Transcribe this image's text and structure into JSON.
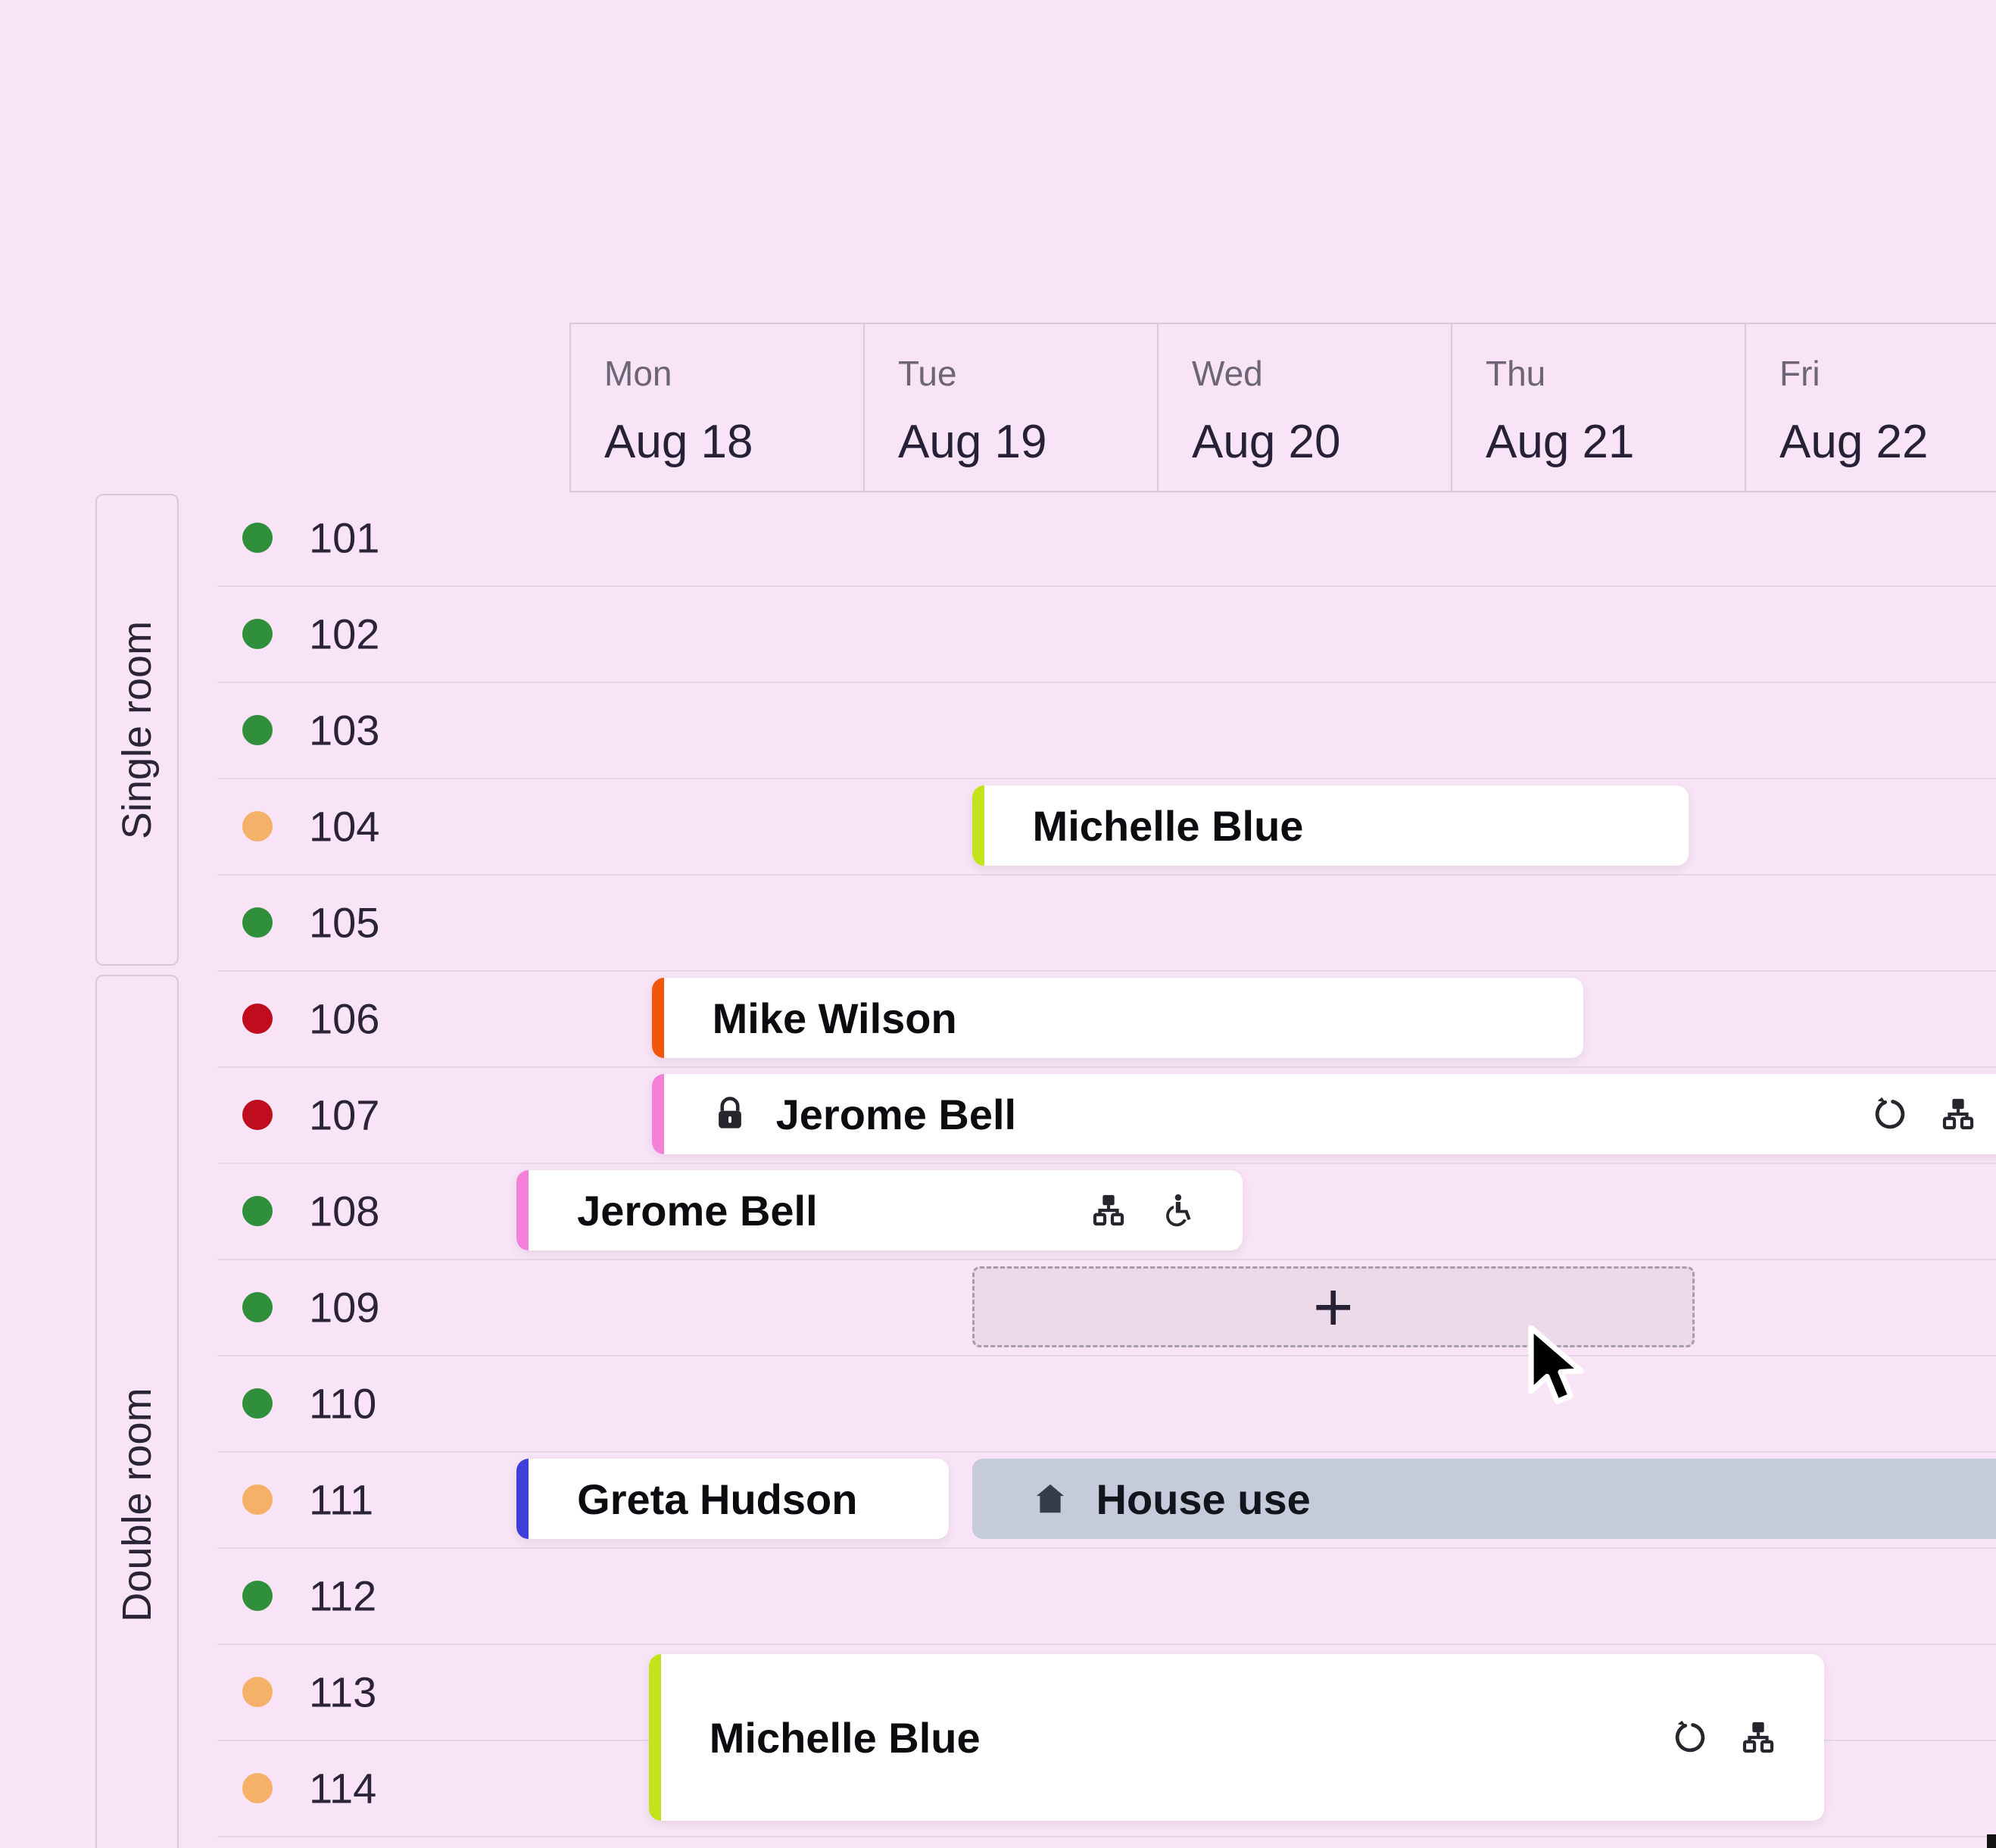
{
  "calendar": {
    "days": [
      {
        "weekday": "Mon",
        "date": "Aug 18"
      },
      {
        "weekday": "Tue",
        "date": "Aug 19"
      },
      {
        "weekday": "Wed",
        "date": "Aug 20"
      },
      {
        "weekday": "Thu",
        "date": "Aug 21"
      },
      {
        "weekday": "Fri",
        "date": "Aug 22"
      }
    ]
  },
  "room_groups": [
    {
      "label": "Single room",
      "rooms": [
        {
          "number": "101",
          "status": "available"
        },
        {
          "number": "102",
          "status": "available"
        },
        {
          "number": "103",
          "status": "available"
        },
        {
          "number": "104",
          "status": "attention"
        },
        {
          "number": "105",
          "status": "available"
        }
      ]
    },
    {
      "label": "Double room",
      "rooms": [
        {
          "number": "106",
          "status": "occupied"
        },
        {
          "number": "107",
          "status": "occupied"
        },
        {
          "number": "108",
          "status": "available"
        },
        {
          "number": "109",
          "status": "available"
        },
        {
          "number": "110",
          "status": "available"
        },
        {
          "number": "111",
          "status": "attention"
        },
        {
          "number": "112",
          "status": "available"
        },
        {
          "number": "113",
          "status": "attention"
        },
        {
          "number": "114",
          "status": "attention"
        }
      ]
    }
  ],
  "status_colors": {
    "available": "#2f8f3b",
    "occupied": "#bf0d1e",
    "attention": "#f6b168"
  },
  "accent_colors": {
    "lime": "#c3e31d",
    "orange": "#f25708",
    "pink": "#f480d7",
    "blue": "#3e3ed8"
  },
  "bookings": [
    {
      "room": "104",
      "guest": "Michelle Blue",
      "kind": "guest",
      "accent": "lime",
      "start_day": 1.37,
      "end_day": 3.81,
      "locked": false,
      "rowspan": 1,
      "icons": []
    },
    {
      "room": "106",
      "guest": "Mike Wilson",
      "kind": "guest",
      "accent": "orange",
      "start_day": 0.28,
      "end_day": 3.45,
      "locked": false,
      "rowspan": 1,
      "icons": []
    },
    {
      "room": "107",
      "guest": "Jerome Bell",
      "kind": "guest",
      "accent": "pink",
      "start_day": 0.28,
      "end_day": 4.95,
      "locked": true,
      "rowspan": 1,
      "icons": [
        "refresh",
        "sitemap"
      ]
    },
    {
      "room": "108",
      "guest": "Jerome Bell",
      "kind": "guest",
      "accent": "pink",
      "start_day": -0.18,
      "end_day": 2.29,
      "locked": false,
      "rowspan": 1,
      "icons": [
        "sitemap",
        "wheelchair"
      ]
    },
    {
      "room": "111",
      "guest": "Greta Hudson",
      "kind": "guest",
      "accent": "blue",
      "start_day": -0.18,
      "end_day": 1.29,
      "locked": false,
      "rowspan": 1,
      "icons": []
    },
    {
      "room": "111",
      "guest": "House use",
      "kind": "house-use",
      "accent": null,
      "start_day": 1.37,
      "end_day": 4.95,
      "locked": false,
      "rowspan": 1,
      "icons": [],
      "lead_icon": "house"
    },
    {
      "room": "113",
      "guest": "Michelle Blue",
      "kind": "guest",
      "accent": "lime",
      "start_day": 0.27,
      "end_day": 4.27,
      "locked": false,
      "rowspan": 2,
      "icons": [
        "refresh",
        "sitemap"
      ]
    }
  ],
  "draft_selection": {
    "room": "109",
    "start_day": 1.37,
    "end_day": 3.83,
    "plus_label": "+"
  },
  "theme": {
    "background": "#f8e4f6",
    "divider": "#e7d4e5",
    "header_border": "#dbc7d9",
    "text_dark": "#262136",
    "text_muted": "#6c6575",
    "bar_bg": "#ffffff",
    "bar_text": "#0c0b10",
    "house_use_bg": "#c5cbdb",
    "house_icon": "#363b49",
    "draft_bg": "#ecd9ea",
    "draft_border": "#a89cab",
    "icon_color": "#26262e"
  }
}
